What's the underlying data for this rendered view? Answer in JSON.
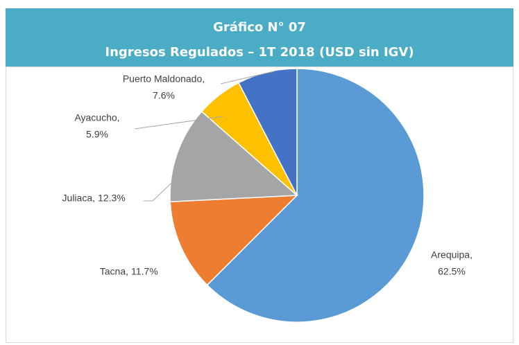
{
  "chart_data": {
    "type": "pie",
    "title": "Gráfico N° 07",
    "subtitle": "Ingresos Regulados – 1T 2018 (USD sin IGV)",
    "categories": [
      "Arequipa,",
      "Tacna,",
      "Juliaca,",
      "Ayacucho,",
      "Puerto Maldonado,"
    ],
    "values": [
      62.5,
      11.7,
      12.3,
      5.9,
      7.6
    ],
    "value_labels": [
      "62.5%",
      "11.7%",
      "12.3%",
      "5.9%",
      "7.6%"
    ],
    "colors": [
      "#5b9bd5",
      "#ed7d31",
      "#a5a5a5",
      "#ffc000",
      "#4472c4"
    ]
  }
}
